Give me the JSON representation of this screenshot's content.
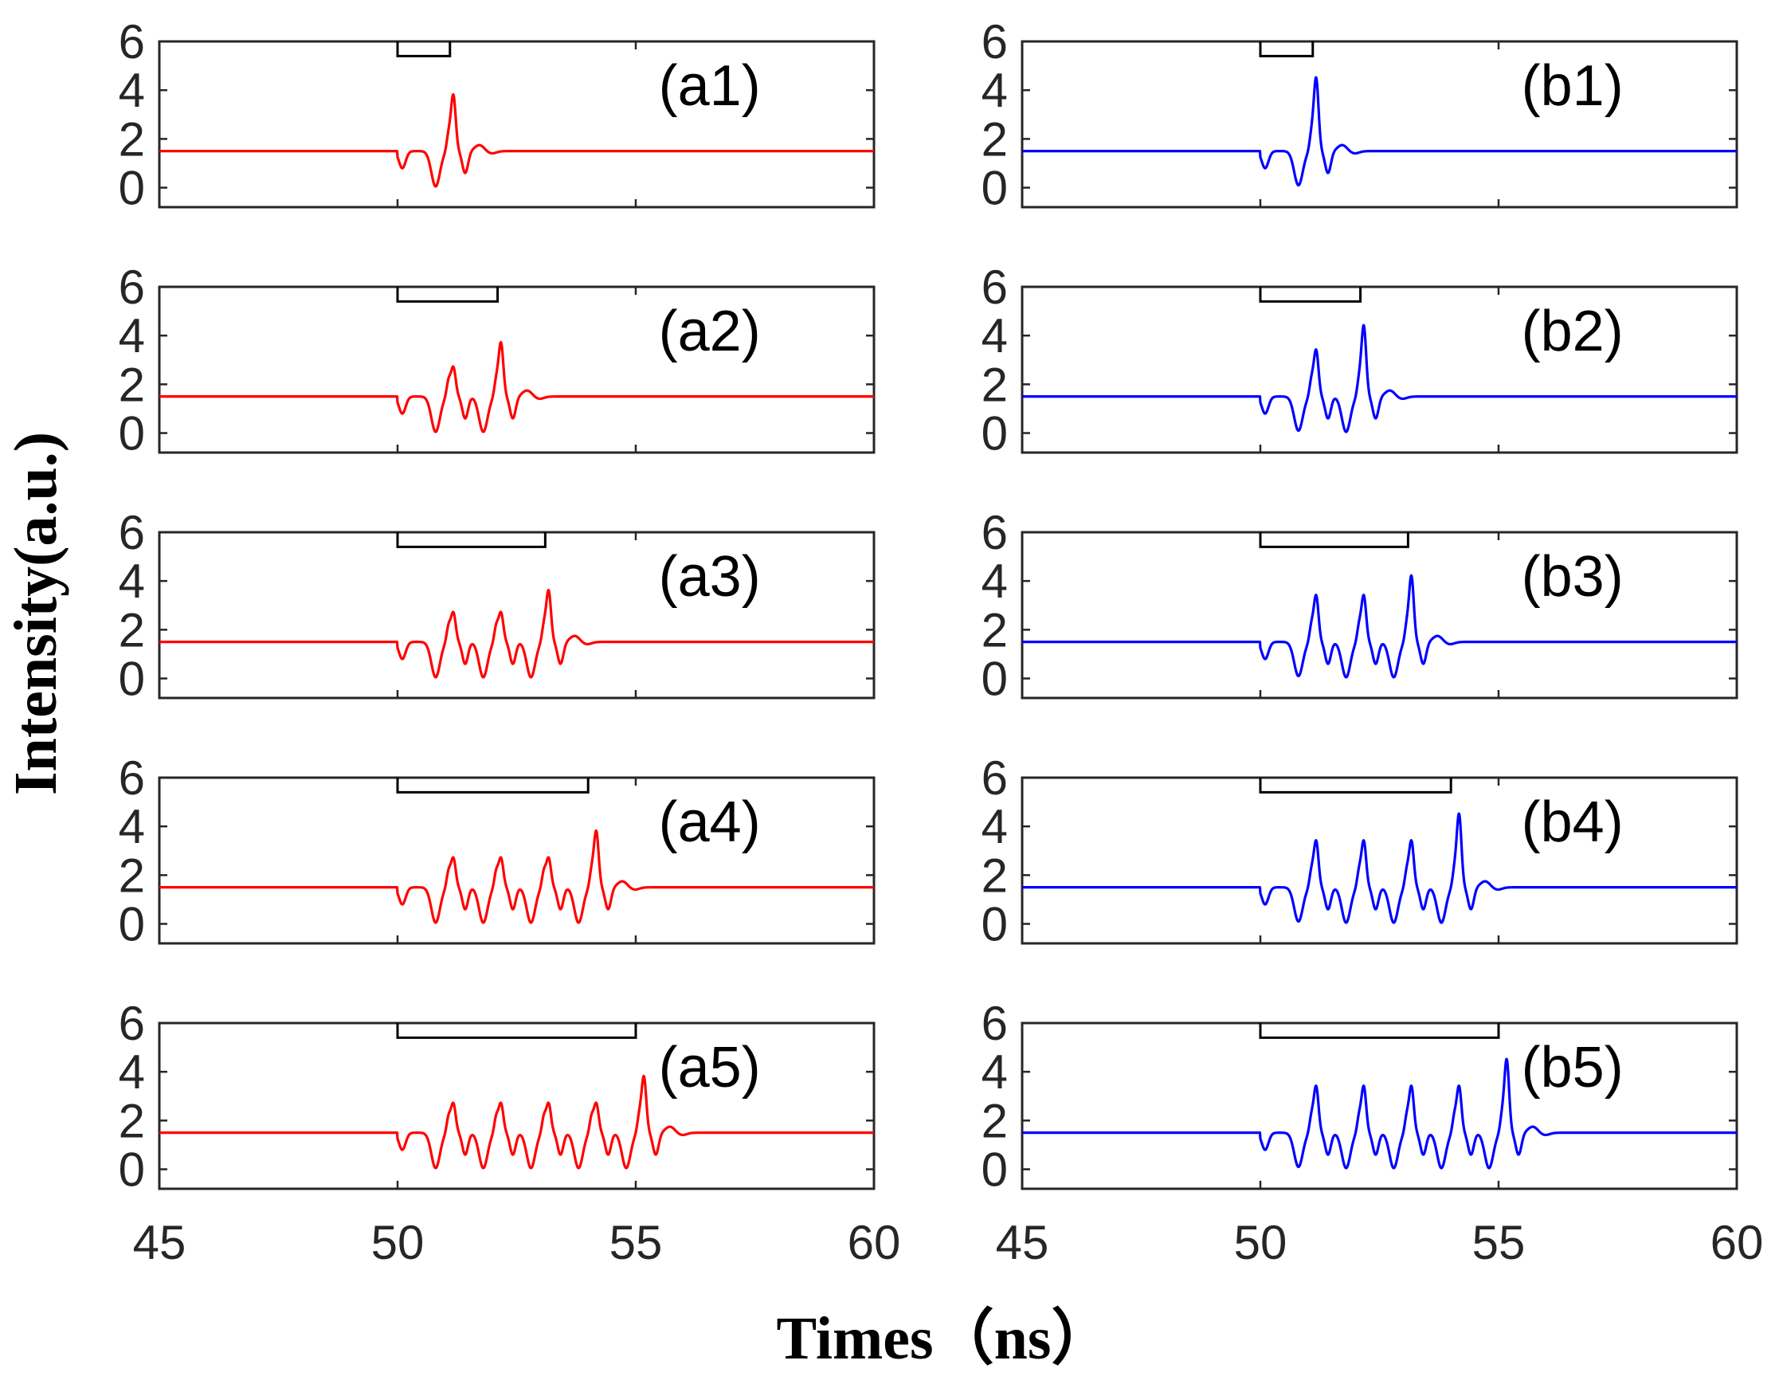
{
  "chart_data": {
    "type": "line",
    "xlabel": "Times（ns）",
    "ylabel": "Intensity(a.u.)",
    "xlim": [
      45,
      60
    ],
    "ylim": [
      -0.8,
      6
    ],
    "x_ticks": [
      "45",
      "50",
      "55",
      "60"
    ],
    "y_ticks": [
      "0",
      "2",
      "4",
      "6"
    ],
    "baseline": 1.5,
    "pulse_spacing_ns": 1.0,
    "colors": {
      "a": "#ff0000",
      "b": "#0000ff",
      "window": "#000000"
    },
    "panels": [
      {
        "id": "a1",
        "label": "(a1)",
        "column": 0,
        "row": 0,
        "window_ns": [
          50,
          51.1
        ],
        "peaks": [
          3.8
        ],
        "first_dip": 0.05
      },
      {
        "id": "a2",
        "label": "(a2)",
        "column": 0,
        "row": 1,
        "window_ns": [
          50,
          52.1
        ],
        "peaks": [
          2.7,
          3.7
        ],
        "first_dip": 0.05
      },
      {
        "id": "a3",
        "label": "(a3)",
        "column": 0,
        "row": 2,
        "window_ns": [
          50,
          53.1
        ],
        "peaks": [
          2.7,
          2.7,
          3.6
        ],
        "first_dip": 0.05
      },
      {
        "id": "a4",
        "label": "(a4)",
        "column": 0,
        "row": 3,
        "window_ns": [
          50,
          54.0
        ],
        "peaks": [
          2.7,
          2.7,
          2.7,
          3.8
        ],
        "first_dip": 0.05
      },
      {
        "id": "a5",
        "label": "(a5)",
        "column": 0,
        "row": 4,
        "window_ns": [
          50,
          55.0
        ],
        "peaks": [
          2.7,
          2.7,
          2.7,
          2.7,
          3.8
        ],
        "first_dip": 0.05
      },
      {
        "id": "b1",
        "label": "(b1)",
        "column": 1,
        "row": 0,
        "window_ns": [
          50,
          51.1
        ],
        "peaks": [
          4.5
        ],
        "first_dip": 0.1
      },
      {
        "id": "b2",
        "label": "(b2)",
        "column": 1,
        "row": 1,
        "window_ns": [
          50,
          52.1
        ],
        "peaks": [
          3.4,
          4.4
        ],
        "first_dip": 0.1
      },
      {
        "id": "b3",
        "label": "(b3)",
        "column": 1,
        "row": 2,
        "window_ns": [
          50,
          53.1
        ],
        "peaks": [
          3.4,
          3.4,
          4.2
        ],
        "first_dip": 0.1
      },
      {
        "id": "b4",
        "label": "(b4)",
        "column": 1,
        "row": 3,
        "window_ns": [
          50,
          54.0
        ],
        "peaks": [
          3.4,
          3.4,
          3.4,
          4.5
        ],
        "first_dip": 0.1
      },
      {
        "id": "b5",
        "label": "(b5)",
        "column": 1,
        "row": 4,
        "window_ns": [
          50,
          55.0
        ],
        "peaks": [
          3.4,
          3.4,
          3.4,
          3.4,
          4.5
        ],
        "first_dip": 0.1
      }
    ]
  }
}
